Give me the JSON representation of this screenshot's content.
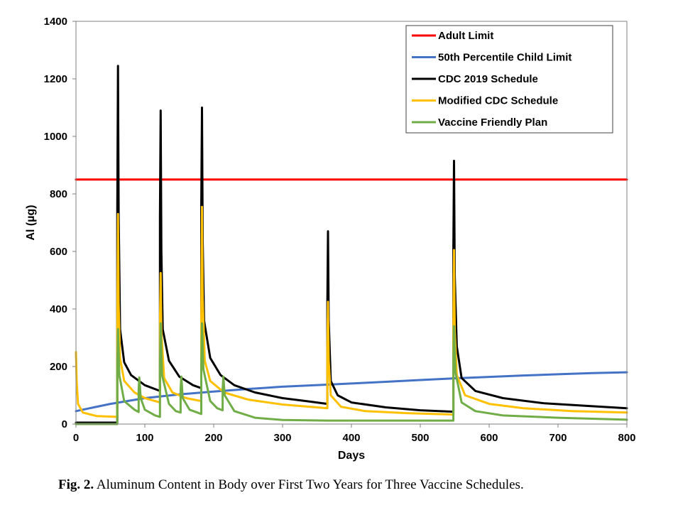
{
  "caption": {
    "label": "Fig. 2.",
    "text": " Aluminum Content in Body over First Two Years for Three Vaccine Schedules."
  },
  "chart_data": {
    "type": "line",
    "xlabel": "Days",
    "ylabel": "Al (µg)",
    "xlim": [
      0,
      800
    ],
    "ylim": [
      0,
      1400
    ],
    "xticks": [
      0,
      100,
      200,
      300,
      400,
      500,
      600,
      700,
      800
    ],
    "yticks": [
      0,
      200,
      400,
      600,
      800,
      1000,
      1200,
      1400
    ],
    "grid": false,
    "legend_position": "top-right",
    "series": [
      {
        "name": "Adult Limit",
        "color": "#ff0000",
        "points": [
          [
            0,
            850
          ],
          [
            800,
            850
          ]
        ]
      },
      {
        "name": "50th Percentile Child Limit",
        "color": "#4472c4",
        "points": [
          [
            0,
            45
          ],
          [
            20,
            55
          ],
          [
            50,
            70
          ],
          [
            100,
            90
          ],
          [
            150,
            103
          ],
          [
            200,
            113
          ],
          [
            250,
            122
          ],
          [
            300,
            130
          ],
          [
            365,
            137
          ],
          [
            400,
            141
          ],
          [
            450,
            147
          ],
          [
            500,
            153
          ],
          [
            550,
            159
          ],
          [
            600,
            164
          ],
          [
            650,
            169
          ],
          [
            700,
            173
          ],
          [
            750,
            177
          ],
          [
            800,
            180
          ]
        ]
      },
      {
        "name": "CDC 2019 Schedule",
        "color": "#000000",
        "points": [
          [
            0,
            5
          ],
          [
            60,
            5
          ],
          [
            60,
            730
          ],
          [
            61,
            1245
          ],
          [
            62,
            730
          ],
          [
            64,
            330
          ],
          [
            70,
            215
          ],
          [
            80,
            170
          ],
          [
            100,
            135
          ],
          [
            122,
            115
          ],
          [
            122,
            720
          ],
          [
            123,
            1090
          ],
          [
            124,
            600
          ],
          [
            126,
            330
          ],
          [
            135,
            220
          ],
          [
            150,
            165
          ],
          [
            170,
            135
          ],
          [
            182,
            125
          ],
          [
            182,
            750
          ],
          [
            183,
            1100
          ],
          [
            184,
            640
          ],
          [
            186,
            360
          ],
          [
            195,
            230
          ],
          [
            210,
            170
          ],
          [
            230,
            135
          ],
          [
            260,
            110
          ],
          [
            300,
            90
          ],
          [
            340,
            78
          ],
          [
            365,
            70
          ],
          [
            365,
            420
          ],
          [
            366,
            670
          ],
          [
            367,
            360
          ],
          [
            370,
            150
          ],
          [
            380,
            100
          ],
          [
            400,
            75
          ],
          [
            450,
            58
          ],
          [
            500,
            48
          ],
          [
            548,
            43
          ],
          [
            548,
            610
          ],
          [
            549,
            915
          ],
          [
            550,
            520
          ],
          [
            553,
            270
          ],
          [
            560,
            160
          ],
          [
            580,
            115
          ],
          [
            620,
            90
          ],
          [
            680,
            72
          ],
          [
            750,
            62
          ],
          [
            800,
            55
          ]
        ]
      },
      {
        "name": "Modified CDC Schedule",
        "color": "#ffc000",
        "points": [
          [
            0,
            250
          ],
          [
            1,
            150
          ],
          [
            3,
            70
          ],
          [
            10,
            40
          ],
          [
            30,
            28
          ],
          [
            60,
            25
          ],
          [
            60,
            330
          ],
          [
            61,
            730
          ],
          [
            62,
            420
          ],
          [
            64,
            230
          ],
          [
            70,
            150
          ],
          [
            85,
            110
          ],
          [
            100,
            90
          ],
          [
            122,
            75
          ],
          [
            122,
            350
          ],
          [
            123,
            525
          ],
          [
            124,
            320
          ],
          [
            128,
            160
          ],
          [
            140,
            110
          ],
          [
            160,
            90
          ],
          [
            182,
            80
          ],
          [
            182,
            360
          ],
          [
            183,
            755
          ],
          [
            184,
            440
          ],
          [
            187,
            220
          ],
          [
            195,
            150
          ],
          [
            215,
            110
          ],
          [
            250,
            85
          ],
          [
            300,
            68
          ],
          [
            365,
            55
          ],
          [
            365,
            260
          ],
          [
            366,
            425
          ],
          [
            367,
            220
          ],
          [
            370,
            100
          ],
          [
            385,
            60
          ],
          [
            420,
            45
          ],
          [
            480,
            38
          ],
          [
            548,
            33
          ],
          [
            548,
            340
          ],
          [
            549,
            605
          ],
          [
            550,
            330
          ],
          [
            553,
            170
          ],
          [
            565,
            100
          ],
          [
            600,
            70
          ],
          [
            650,
            55
          ],
          [
            720,
            45
          ],
          [
            800,
            40
          ]
        ]
      },
      {
        "name": "Vaccine Friendly Plan",
        "color": "#70ad47",
        "points": [
          [
            0,
            0
          ],
          [
            60,
            0
          ],
          [
            60,
            180
          ],
          [
            61,
            330
          ],
          [
            63,
            170
          ],
          [
            70,
            80
          ],
          [
            85,
            50
          ],
          [
            91,
            42
          ],
          [
            91,
            120
          ],
          [
            92,
            162
          ],
          [
            94,
            90
          ],
          [
            100,
            50
          ],
          [
            115,
            30
          ],
          [
            122,
            25
          ],
          [
            122,
            200
          ],
          [
            123,
            350
          ],
          [
            125,
            170
          ],
          [
            135,
            70
          ],
          [
            145,
            45
          ],
          [
            152,
            40
          ],
          [
            152,
            120
          ],
          [
            153,
            165
          ],
          [
            155,
            90
          ],
          [
            165,
            50
          ],
          [
            182,
            35
          ],
          [
            182,
            200
          ],
          [
            183,
            350
          ],
          [
            185,
            190
          ],
          [
            195,
            80
          ],
          [
            205,
            55
          ],
          [
            213,
            48
          ],
          [
            213,
            120
          ],
          [
            214,
            165
          ],
          [
            216,
            100
          ],
          [
            230,
            45
          ],
          [
            260,
            22
          ],
          [
            300,
            14
          ],
          [
            365,
            12
          ],
          [
            548,
            12
          ],
          [
            548,
            200
          ],
          [
            549,
            340
          ],
          [
            551,
            180
          ],
          [
            560,
            75
          ],
          [
            580,
            45
          ],
          [
            620,
            30
          ],
          [
            700,
            22
          ],
          [
            800,
            15
          ]
        ]
      }
    ]
  }
}
